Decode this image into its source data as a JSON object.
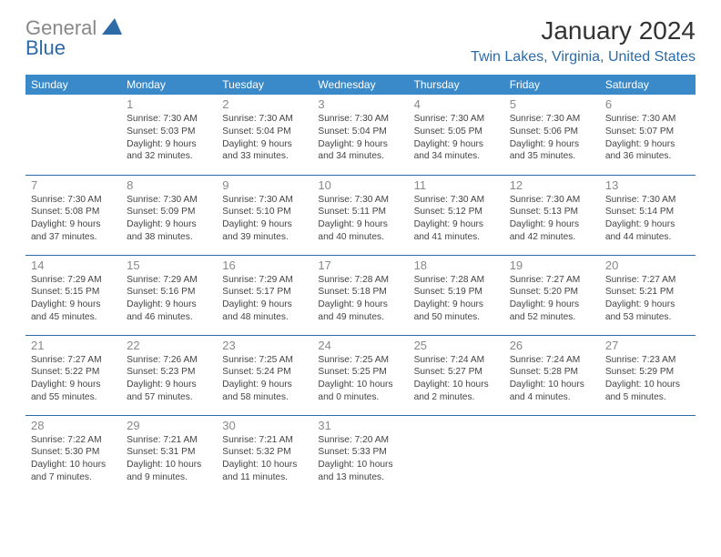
{
  "logo": {
    "gray": "General",
    "blue": "Blue"
  },
  "title": "January 2024",
  "location": "Twin Lakes, Virginia, United States",
  "header_bg": "#3a8ac9",
  "accent": "#2d6aa8",
  "day_headers": [
    "Sunday",
    "Monday",
    "Tuesday",
    "Wednesday",
    "Thursday",
    "Friday",
    "Saturday"
  ],
  "weeks": [
    [
      null,
      {
        "n": "1",
        "sr": "7:30 AM",
        "ss": "5:03 PM",
        "dl": "9 hours and 32 minutes."
      },
      {
        "n": "2",
        "sr": "7:30 AM",
        "ss": "5:04 PM",
        "dl": "9 hours and 33 minutes."
      },
      {
        "n": "3",
        "sr": "7:30 AM",
        "ss": "5:04 PM",
        "dl": "9 hours and 34 minutes."
      },
      {
        "n": "4",
        "sr": "7:30 AM",
        "ss": "5:05 PM",
        "dl": "9 hours and 34 minutes."
      },
      {
        "n": "5",
        "sr": "7:30 AM",
        "ss": "5:06 PM",
        "dl": "9 hours and 35 minutes."
      },
      {
        "n": "6",
        "sr": "7:30 AM",
        "ss": "5:07 PM",
        "dl": "9 hours and 36 minutes."
      }
    ],
    [
      {
        "n": "7",
        "sr": "7:30 AM",
        "ss": "5:08 PM",
        "dl": "9 hours and 37 minutes."
      },
      {
        "n": "8",
        "sr": "7:30 AM",
        "ss": "5:09 PM",
        "dl": "9 hours and 38 minutes."
      },
      {
        "n": "9",
        "sr": "7:30 AM",
        "ss": "5:10 PM",
        "dl": "9 hours and 39 minutes."
      },
      {
        "n": "10",
        "sr": "7:30 AM",
        "ss": "5:11 PM",
        "dl": "9 hours and 40 minutes."
      },
      {
        "n": "11",
        "sr": "7:30 AM",
        "ss": "5:12 PM",
        "dl": "9 hours and 41 minutes."
      },
      {
        "n": "12",
        "sr": "7:30 AM",
        "ss": "5:13 PM",
        "dl": "9 hours and 42 minutes."
      },
      {
        "n": "13",
        "sr": "7:30 AM",
        "ss": "5:14 PM",
        "dl": "9 hours and 44 minutes."
      }
    ],
    [
      {
        "n": "14",
        "sr": "7:29 AM",
        "ss": "5:15 PM",
        "dl": "9 hours and 45 minutes."
      },
      {
        "n": "15",
        "sr": "7:29 AM",
        "ss": "5:16 PM",
        "dl": "9 hours and 46 minutes."
      },
      {
        "n": "16",
        "sr": "7:29 AM",
        "ss": "5:17 PM",
        "dl": "9 hours and 48 minutes."
      },
      {
        "n": "17",
        "sr": "7:28 AM",
        "ss": "5:18 PM",
        "dl": "9 hours and 49 minutes."
      },
      {
        "n": "18",
        "sr": "7:28 AM",
        "ss": "5:19 PM",
        "dl": "9 hours and 50 minutes."
      },
      {
        "n": "19",
        "sr": "7:27 AM",
        "ss": "5:20 PM",
        "dl": "9 hours and 52 minutes."
      },
      {
        "n": "20",
        "sr": "7:27 AM",
        "ss": "5:21 PM",
        "dl": "9 hours and 53 minutes."
      }
    ],
    [
      {
        "n": "21",
        "sr": "7:27 AM",
        "ss": "5:22 PM",
        "dl": "9 hours and 55 minutes."
      },
      {
        "n": "22",
        "sr": "7:26 AM",
        "ss": "5:23 PM",
        "dl": "9 hours and 57 minutes."
      },
      {
        "n": "23",
        "sr": "7:25 AM",
        "ss": "5:24 PM",
        "dl": "9 hours and 58 minutes."
      },
      {
        "n": "24",
        "sr": "7:25 AM",
        "ss": "5:25 PM",
        "dl": "10 hours and 0 minutes."
      },
      {
        "n": "25",
        "sr": "7:24 AM",
        "ss": "5:27 PM",
        "dl": "10 hours and 2 minutes."
      },
      {
        "n": "26",
        "sr": "7:24 AM",
        "ss": "5:28 PM",
        "dl": "10 hours and 4 minutes."
      },
      {
        "n": "27",
        "sr": "7:23 AM",
        "ss": "5:29 PM",
        "dl": "10 hours and 5 minutes."
      }
    ],
    [
      {
        "n": "28",
        "sr": "7:22 AM",
        "ss": "5:30 PM",
        "dl": "10 hours and 7 minutes."
      },
      {
        "n": "29",
        "sr": "7:21 AM",
        "ss": "5:31 PM",
        "dl": "10 hours and 9 minutes."
      },
      {
        "n": "30",
        "sr": "7:21 AM",
        "ss": "5:32 PM",
        "dl": "10 hours and 11 minutes."
      },
      {
        "n": "31",
        "sr": "7:20 AM",
        "ss": "5:33 PM",
        "dl": "10 hours and 13 minutes."
      },
      null,
      null,
      null
    ]
  ],
  "labels": {
    "sunrise": "Sunrise: ",
    "sunset": "Sunset: ",
    "daylight": "Daylight: "
  }
}
